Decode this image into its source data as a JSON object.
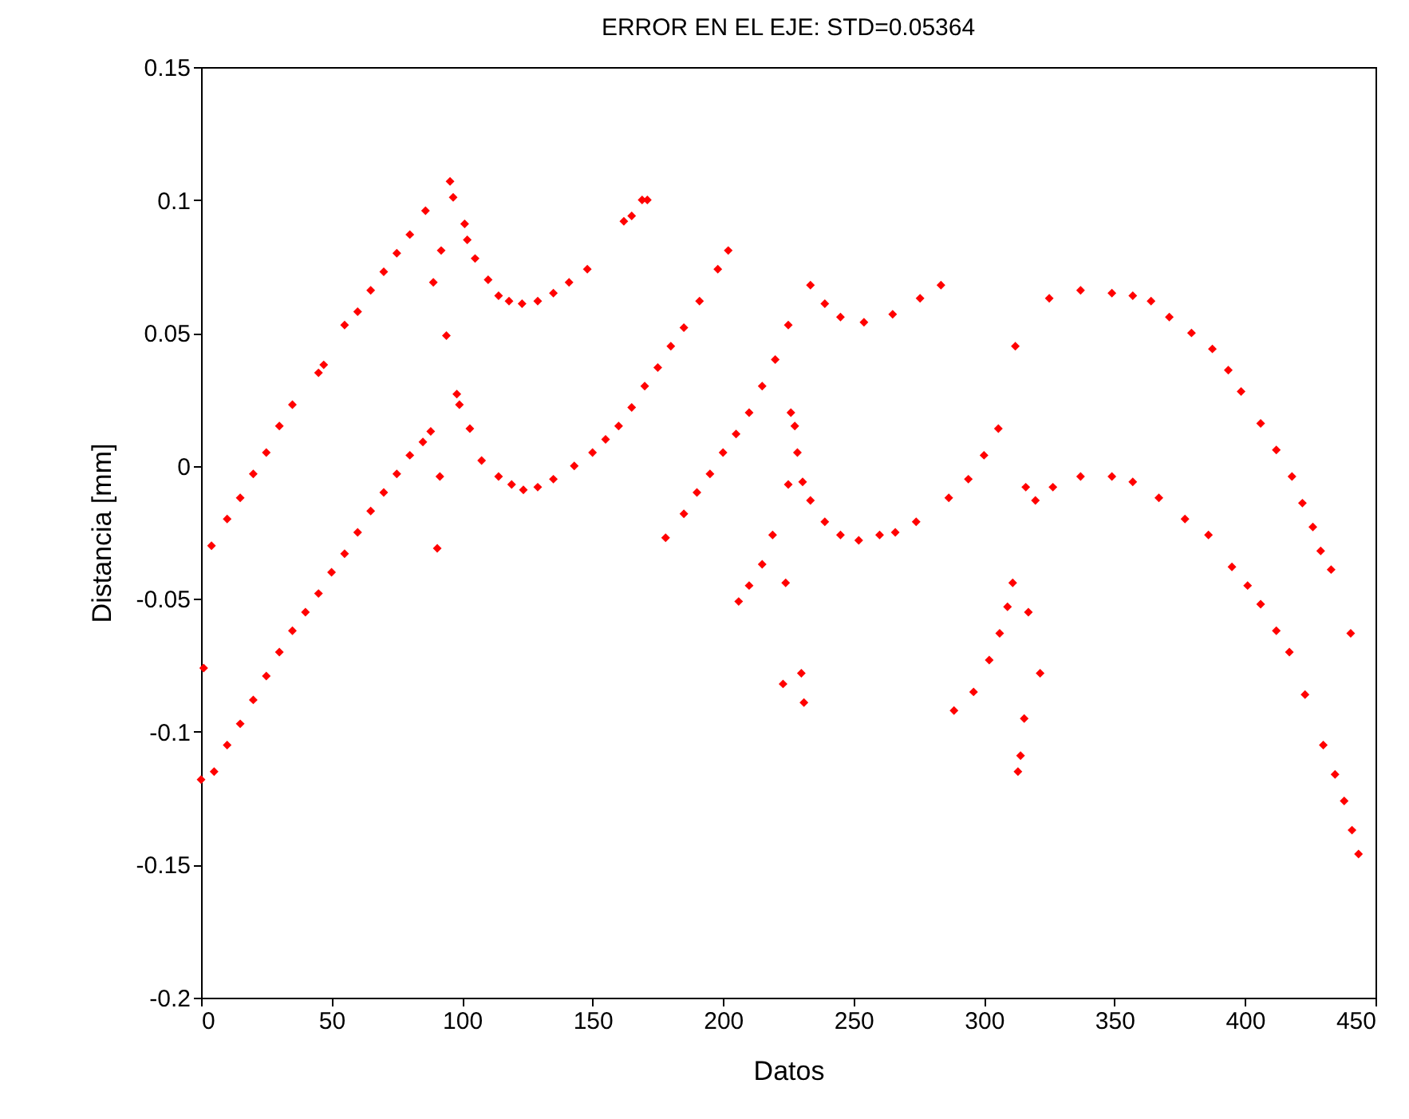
{
  "chart_data": {
    "type": "scatter",
    "title": "ERROR EN EL EJE: STD=0.05364",
    "xlabel": "Datos",
    "ylabel": "Distancia [mm]",
    "xlim": [
      0,
      450
    ],
    "xticks": [
      0,
      50,
      100,
      150,
      200,
      250,
      300,
      350,
      400,
      450
    ],
    "ylim": [
      -0.2,
      0.15
    ],
    "yticks": [
      -0.2,
      -0.15,
      -0.1,
      -0.05,
      0,
      0.05,
      0.1,
      0.15
    ],
    "marker": "diamond",
    "grid": false,
    "series": [
      {
        "color": "#ff0000",
        "x": [
          4,
          10,
          15,
          20,
          25,
          30,
          35,
          45,
          47,
          55,
          60,
          65,
          70,
          75,
          80,
          86,
          0,
          5,
          10,
          15,
          20,
          25,
          30,
          35,
          40,
          45,
          50,
          55,
          60,
          65,
          70,
          75,
          80,
          85,
          88,
          1,
          92,
          89,
          94,
          91.5,
          90.5,
          95.4,
          96.6,
          101,
          102,
          105,
          110,
          114,
          118,
          123,
          129,
          135,
          141,
          148,
          162,
          165,
          169,
          171,
          98,
          99,
          103,
          107.5,
          114,
          119,
          123.5,
          129,
          135,
          143,
          150,
          155,
          160,
          165,
          170,
          175,
          180,
          185,
          191,
          198,
          202,
          178,
          185,
          190,
          195,
          200,
          205,
          210,
          215,
          220,
          225,
          206,
          210,
          215,
          219,
          224,
          223,
          230,
          231,
          233.5,
          239,
          245,
          254,
          265,
          275.5,
          283.5,
          226,
          227.5,
          228.5,
          225,
          230.5,
          233.5,
          239,
          245,
          252,
          260,
          266,
          274,
          286.5,
          294,
          300,
          305.5,
          288.5,
          296,
          302,
          306,
          309,
          311,
          312,
          317,
          321.5,
          315.4,
          314,
          313,
          316,
          319.7,
          326.4,
          337,
          349,
          357,
          367,
          377,
          386,
          395,
          401,
          406,
          412,
          417,
          423,
          430,
          434.5,
          438,
          441,
          443.5,
          325,
          337,
          349,
          357,
          364,
          371,
          379.5,
          387.5,
          393.6,
          398.5,
          406,
          412,
          418,
          422,
          426,
          429,
          433,
          440.5
        ],
        "values": [
          -0.03,
          -0.02,
          -0.012,
          -0.003,
          0.005,
          0.015,
          0.023,
          0.035,
          0.038,
          0.053,
          0.058,
          0.066,
          0.073,
          0.08,
          0.087,
          0.096,
          -0.118,
          -0.115,
          -0.105,
          -0.097,
          -0.088,
          -0.079,
          -0.07,
          -0.062,
          -0.055,
          -0.048,
          -0.04,
          -0.033,
          -0.025,
          -0.017,
          -0.01,
          -0.003,
          0.004,
          0.009,
          0.013,
          -0.076,
          0.081,
          0.069,
          0.049,
          -0.004,
          -0.031,
          0.107,
          0.101,
          0.091,
          0.085,
          0.078,
          0.07,
          0.064,
          0.062,
          0.061,
          0.062,
          0.065,
          0.069,
          0.074,
          0.092,
          0.094,
          0.1,
          0.1,
          0.027,
          0.023,
          0.014,
          0.002,
          -0.004,
          -0.007,
          -0.009,
          -0.008,
          -0.005,
          0,
          0.005,
          0.01,
          0.015,
          0.022,
          0.03,
          0.037,
          0.045,
          0.052,
          0.062,
          0.074,
          0.081,
          -0.027,
          -0.018,
          -0.01,
          -0.003,
          0.005,
          0.012,
          0.02,
          0.03,
          0.04,
          0.053,
          -0.051,
          -0.045,
          -0.037,
          -0.026,
          -0.044,
          -0.082,
          -0.078,
          -0.089,
          0.068,
          0.061,
          0.056,
          0.054,
          0.057,
          0.063,
          0.068,
          0.02,
          0.015,
          0.005,
          -0.007,
          -0.006,
          -0.013,
          -0.021,
          -0.026,
          -0.028,
          -0.026,
          -0.025,
          -0.021,
          -0.012,
          -0.005,
          0.004,
          0.014,
          -0.092,
          -0.085,
          -0.073,
          -0.063,
          -0.053,
          -0.044,
          0.045,
          -0.055,
          -0.078,
          -0.095,
          -0.109,
          -0.115,
          -0.008,
          -0.013,
          -0.008,
          -0.004,
          -0.004,
          -0.006,
          -0.012,
          -0.02,
          -0.026,
          -0.038,
          -0.045,
          -0.052,
          -0.062,
          -0.07,
          -0.086,
          -0.105,
          -0.116,
          -0.126,
          -0.137,
          -0.146,
          0.063,
          0.066,
          0.065,
          0.064,
          0.062,
          0.056,
          0.05,
          0.044,
          0.036,
          0.028,
          0.016,
          0.006,
          -0.004,
          -0.014,
          -0.023,
          -0.032,
          -0.039,
          -0.063
        ]
      }
    ]
  }
}
